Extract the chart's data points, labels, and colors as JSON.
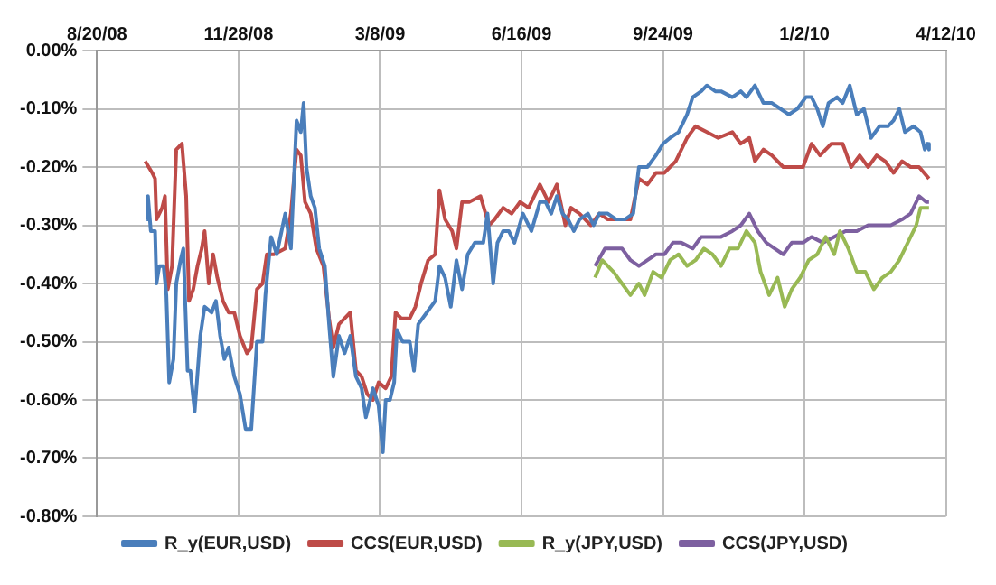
{
  "chart_data": {
    "type": "line",
    "legend": "bottom",
    "grid": true,
    "marker": "none",
    "line_style": "solid",
    "xlim": [
      "2008-08-20",
      "2010-04-12"
    ],
    "xticks": [
      {
        "value": "2008-08-20",
        "label": "8/20/08"
      },
      {
        "value": "2008-11-28",
        "label": "11/28/08"
      },
      {
        "value": "2009-03-08",
        "label": "3/8/09"
      },
      {
        "value": "2009-06-16",
        "label": "6/16/09"
      },
      {
        "value": "2009-09-24",
        "label": "9/24/09"
      },
      {
        "value": "2010-01-02",
        "label": "1/2/10"
      },
      {
        "value": "2010-04-12",
        "label": "4/12/10"
      }
    ],
    "ylim": [
      -0.8,
      0
    ],
    "yticks": [
      {
        "value": -0.8,
        "label": "-0.80%"
      },
      {
        "value": -0.7,
        "label": "-0.70%"
      },
      {
        "value": -0.6,
        "label": "-0.60%"
      },
      {
        "value": -0.5,
        "label": "-0.50%"
      },
      {
        "value": -0.4,
        "label": "-0.40%"
      },
      {
        "value": -0.3,
        "label": "-0.30%"
      },
      {
        "value": -0.2,
        "label": "-0.20%"
      },
      {
        "value": -0.1,
        "label": "-0.10%"
      },
      {
        "value": 0,
        "label": "0.00%"
      }
    ],
    "series": [
      {
        "name": "R_y(EUR,USD)",
        "color": "#4a7ebb",
        "x": [
          "2008-09-24",
          "2008-09-25",
          "2008-09-27",
          "2008-09-30",
          "2008-10-01",
          "2008-10-03",
          "2008-10-06",
          "2008-10-08",
          "2008-10-10",
          "2008-10-13",
          "2008-10-15",
          "2008-10-18",
          "2008-10-20",
          "2008-10-23",
          "2008-10-25",
          "2008-10-28",
          "2008-11-01",
          "2008-11-04",
          "2008-11-09",
          "2008-11-12",
          "2008-11-15",
          "2008-11-18",
          "2008-11-21",
          "2008-11-25",
          "2008-11-29",
          "2008-12-03",
          "2008-12-07",
          "2008-12-11",
          "2008-12-15",
          "2008-12-17",
          "2008-12-21",
          "2008-12-25",
          "2008-12-31",
          "2009-01-04",
          "2009-01-08",
          "2009-01-11",
          "2009-01-13",
          "2009-01-15",
          "2009-01-18",
          "2009-01-21",
          "2009-01-24",
          "2009-01-28",
          "2009-01-31",
          "2009-02-03",
          "2009-02-07",
          "2009-02-11",
          "2009-02-15",
          "2009-02-19",
          "2009-02-23",
          "2009-02-26",
          "2009-03-03",
          "2009-03-07",
          "2009-03-10",
          "2009-03-12",
          "2009-03-15",
          "2009-03-18",
          "2009-03-20",
          "2009-03-24",
          "2009-03-29",
          "2009-04-01",
          "2009-04-04",
          "2009-04-10",
          "2009-04-16",
          "2009-04-19",
          "2009-04-23",
          "2009-04-27",
          "2009-05-01",
          "2009-05-05",
          "2009-05-09",
          "2009-05-14",
          "2009-05-20",
          "2009-05-23",
          "2009-05-27",
          "2009-05-30",
          "2009-06-03",
          "2009-06-07",
          "2009-06-11",
          "2009-06-17",
          "2009-06-23",
          "2009-06-29",
          "2009-07-03",
          "2009-07-07",
          "2009-07-11",
          "2009-07-15",
          "2009-07-19",
          "2009-07-23",
          "2009-07-27",
          "2009-08-02",
          "2009-08-06",
          "2009-08-10",
          "2009-08-16",
          "2009-08-22",
          "2009-08-28",
          "2009-09-03",
          "2009-09-07",
          "2009-09-13",
          "2009-09-19",
          "2009-09-24",
          "2009-09-29",
          "2009-10-05",
          "2009-10-11",
          "2009-10-15",
          "2009-10-21",
          "2009-10-25",
          "2009-10-31",
          "2009-11-04",
          "2009-11-12",
          "2009-11-18",
          "2009-11-22",
          "2009-11-28",
          "2009-12-04",
          "2009-12-10",
          "2009-12-16",
          "2009-12-22",
          "2009-12-28",
          "2010-01-03",
          "2010-01-07",
          "2010-01-11",
          "2010-01-15",
          "2010-01-19",
          "2010-01-25",
          "2010-01-29",
          "2010-02-03",
          "2010-02-08",
          "2010-02-13",
          "2010-02-18",
          "2010-02-24",
          "2010-03-02",
          "2010-03-06",
          "2010-03-10",
          "2010-03-14",
          "2010-03-20",
          "2010-03-25",
          "2010-03-28",
          "2010-03-30",
          "2010-03-31"
        ],
        "values": [
          -0.29,
          -0.25,
          -0.31,
          -0.31,
          -0.4,
          -0.37,
          -0.37,
          -0.42,
          -0.57,
          -0.53,
          -0.4,
          -0.36,
          -0.34,
          -0.55,
          -0.55,
          -0.62,
          -0.49,
          -0.44,
          -0.45,
          -0.43,
          -0.49,
          -0.53,
          -0.51,
          -0.56,
          -0.59,
          -0.65,
          -0.65,
          -0.5,
          -0.5,
          -0.42,
          -0.32,
          -0.35,
          -0.28,
          -0.34,
          -0.12,
          -0.14,
          -0.09,
          -0.2,
          -0.25,
          -0.27,
          -0.34,
          -0.37,
          -0.47,
          -0.56,
          -0.49,
          -0.52,
          -0.49,
          -0.56,
          -0.58,
          -0.63,
          -0.58,
          -0.61,
          -0.69,
          -0.6,
          -0.6,
          -0.57,
          -0.48,
          -0.5,
          -0.5,
          -0.55,
          -0.47,
          -0.45,
          -0.43,
          -0.37,
          -0.39,
          -0.44,
          -0.36,
          -0.41,
          -0.35,
          -0.33,
          -0.33,
          -0.28,
          -0.4,
          -0.33,
          -0.31,
          -0.31,
          -0.33,
          -0.28,
          -0.31,
          -0.26,
          -0.26,
          -0.28,
          -0.25,
          -0.28,
          -0.29,
          -0.31,
          -0.29,
          -0.28,
          -0.3,
          -0.28,
          -0.28,
          -0.29,
          -0.29,
          -0.28,
          -0.2,
          -0.2,
          -0.18,
          -0.16,
          -0.15,
          -0.14,
          -0.11,
          -0.08,
          -0.07,
          -0.06,
          -0.07,
          -0.07,
          -0.08,
          -0.07,
          -0.08,
          -0.06,
          -0.09,
          -0.09,
          -0.1,
          -0.11,
          -0.1,
          -0.08,
          -0.08,
          -0.1,
          -0.13,
          -0.09,
          -0.08,
          -0.09,
          -0.06,
          -0.11,
          -0.1,
          -0.15,
          -0.13,
          -0.13,
          -0.12,
          -0.1,
          -0.14,
          -0.13,
          -0.14,
          -0.17,
          -0.16,
          -0.17
        ]
      },
      {
        "name": "CCS(EUR,USD)",
        "color": "#be4b48",
        "x": [
          "2008-09-23",
          "2008-09-28",
          "2008-09-30",
          "2008-10-01",
          "2008-10-05",
          "2008-10-07",
          "2008-10-09",
          "2008-10-12",
          "2008-10-15",
          "2008-10-19",
          "2008-10-22",
          "2008-10-24",
          "2008-10-27",
          "2008-10-30",
          "2008-11-02",
          "2008-11-04",
          "2008-11-07",
          "2008-11-10",
          "2008-11-13",
          "2008-11-17",
          "2008-11-21",
          "2008-11-25",
          "2008-11-29",
          "2008-12-04",
          "2008-12-07",
          "2008-12-11",
          "2008-12-15",
          "2008-12-18",
          "2008-12-23",
          "2008-12-31",
          "2009-01-04",
          "2009-01-08",
          "2009-01-11",
          "2009-01-14",
          "2009-01-18",
          "2009-01-22",
          "2009-01-27",
          "2009-01-31",
          "2009-02-03",
          "2009-02-07",
          "2009-02-11",
          "2009-02-15",
          "2009-02-19",
          "2009-02-23",
          "2009-02-27",
          "2009-03-03",
          "2009-03-07",
          "2009-03-12",
          "2009-03-16",
          "2009-03-19",
          "2009-03-23",
          "2009-03-29",
          "2009-04-02",
          "2009-04-06",
          "2009-04-11",
          "2009-04-16",
          "2009-04-19",
          "2009-04-23",
          "2009-04-28",
          "2009-05-01",
          "2009-05-05",
          "2009-05-10",
          "2009-05-18",
          "2009-05-24",
          "2009-05-28",
          "2009-06-03",
          "2009-06-09",
          "2009-06-15",
          "2009-06-21",
          "2009-06-29",
          "2009-07-05",
          "2009-07-11",
          "2009-07-17",
          "2009-07-21",
          "2009-07-27",
          "2009-08-04",
          "2009-08-10",
          "2009-08-16",
          "2009-08-24",
          "2009-09-01",
          "2009-09-07",
          "2009-09-13",
          "2009-09-19",
          "2009-09-25",
          "2009-10-03",
          "2009-10-11",
          "2009-10-17",
          "2009-10-25",
          "2009-11-02",
          "2009-11-12",
          "2009-11-18",
          "2009-11-24",
          "2009-11-28",
          "2009-12-04",
          "2009-12-10",
          "2009-12-18",
          "2010-01-01",
          "2010-01-07",
          "2010-01-13",
          "2010-01-21",
          "2010-01-29",
          "2010-02-04",
          "2010-02-10",
          "2010-02-16",
          "2010-02-22",
          "2010-02-28",
          "2010-03-06",
          "2010-03-12",
          "2010-03-18",
          "2010-03-24",
          "2010-03-31"
        ],
        "values": [
          -0.19,
          -0.21,
          -0.22,
          -0.29,
          -0.27,
          -0.25,
          -0.41,
          -0.37,
          -0.17,
          -0.16,
          -0.25,
          -0.43,
          -0.41,
          -0.37,
          -0.34,
          -0.31,
          -0.4,
          -0.35,
          -0.39,
          -0.43,
          -0.45,
          -0.45,
          -0.49,
          -0.52,
          -0.51,
          -0.41,
          -0.4,
          -0.35,
          -0.35,
          -0.34,
          -0.28,
          -0.17,
          -0.18,
          -0.26,
          -0.28,
          -0.34,
          -0.37,
          -0.46,
          -0.51,
          -0.47,
          -0.46,
          -0.45,
          -0.55,
          -0.56,
          -0.59,
          -0.6,
          -0.57,
          -0.58,
          -0.56,
          -0.45,
          -0.46,
          -0.46,
          -0.44,
          -0.4,
          -0.36,
          -0.35,
          -0.24,
          -0.29,
          -0.31,
          -0.34,
          -0.26,
          -0.26,
          -0.25,
          -0.3,
          -0.29,
          -0.27,
          -0.28,
          -0.26,
          -0.27,
          -0.23,
          -0.26,
          -0.23,
          -0.3,
          -0.27,
          -0.28,
          -0.3,
          -0.28,
          -0.29,
          -0.29,
          -0.29,
          -0.22,
          -0.23,
          -0.21,
          -0.21,
          -0.19,
          -0.15,
          -0.13,
          -0.14,
          -0.15,
          -0.14,
          -0.16,
          -0.15,
          -0.19,
          -0.17,
          -0.18,
          -0.2,
          -0.2,
          -0.16,
          -0.18,
          -0.16,
          -0.16,
          -0.2,
          -0.18,
          -0.2,
          -0.18,
          -0.19,
          -0.21,
          -0.19,
          -0.2,
          -0.2,
          -0.22
        ]
      },
      {
        "name": "R_y(JPY,USD)",
        "color": "#98b954",
        "x": [
          "2009-08-07",
          "2009-08-12",
          "2009-08-16",
          "2009-08-20",
          "2009-08-26",
          "2009-09-01",
          "2009-09-07",
          "2009-09-11",
          "2009-09-17",
          "2009-09-23",
          "2009-09-29",
          "2009-10-05",
          "2009-10-11",
          "2009-10-17",
          "2009-10-23",
          "2009-10-29",
          "2009-11-04",
          "2009-11-10",
          "2009-11-16",
          "2009-11-22",
          "2009-11-28",
          "2009-12-02",
          "2009-12-08",
          "2009-12-14",
          "2009-12-19",
          "2009-12-24",
          "2009-12-30",
          "2010-01-05",
          "2010-01-11",
          "2010-01-17",
          "2010-01-23",
          "2010-01-27",
          "2010-02-02",
          "2010-02-08",
          "2010-02-14",
          "2010-02-20",
          "2010-02-26",
          "2010-03-04",
          "2010-03-10",
          "2010-03-16",
          "2010-03-22",
          "2010-03-25",
          "2010-03-31"
        ],
        "values": [
          -0.39,
          -0.36,
          -0.37,
          -0.38,
          -0.4,
          -0.42,
          -0.4,
          -0.42,
          -0.38,
          -0.39,
          -0.36,
          -0.35,
          -0.37,
          -0.36,
          -0.34,
          -0.35,
          -0.37,
          -0.34,
          -0.34,
          -0.31,
          -0.33,
          -0.38,
          -0.42,
          -0.39,
          -0.44,
          -0.41,
          -0.39,
          -0.36,
          -0.35,
          -0.32,
          -0.35,
          -0.31,
          -0.34,
          -0.38,
          -0.38,
          -0.41,
          -0.39,
          -0.38,
          -0.36,
          -0.33,
          -0.3,
          -0.27,
          -0.27
        ]
      },
      {
        "name": "CCS(JPY,USD)",
        "color": "#7d60a0",
        "x": [
          "2009-08-07",
          "2009-08-14",
          "2009-08-20",
          "2009-08-26",
          "2009-09-01",
          "2009-09-07",
          "2009-09-13",
          "2009-09-19",
          "2009-09-25",
          "2009-10-01",
          "2009-10-07",
          "2009-10-15",
          "2009-10-21",
          "2009-10-27",
          "2009-11-04",
          "2009-11-12",
          "2009-11-18",
          "2009-11-24",
          "2009-11-30",
          "2009-12-06",
          "2009-12-12",
          "2009-12-18",
          "2009-12-24",
          "2010-01-01",
          "2010-01-07",
          "2010-01-15",
          "2010-01-23",
          "2010-01-31",
          "2010-02-08",
          "2010-02-16",
          "2010-02-24",
          "2010-03-04",
          "2010-03-12",
          "2010-03-18",
          "2010-03-24",
          "2010-03-29",
          "2010-03-31"
        ],
        "values": [
          -0.37,
          -0.34,
          -0.34,
          -0.34,
          -0.36,
          -0.37,
          -0.36,
          -0.35,
          -0.35,
          -0.33,
          -0.33,
          -0.34,
          -0.32,
          -0.32,
          -0.32,
          -0.31,
          -0.3,
          -0.28,
          -0.31,
          -0.33,
          -0.34,
          -0.35,
          -0.33,
          -0.33,
          -0.32,
          -0.33,
          -0.32,
          -0.31,
          -0.31,
          -0.3,
          -0.3,
          -0.3,
          -0.29,
          -0.28,
          -0.25,
          -0.26,
          -0.26
        ]
      }
    ]
  }
}
